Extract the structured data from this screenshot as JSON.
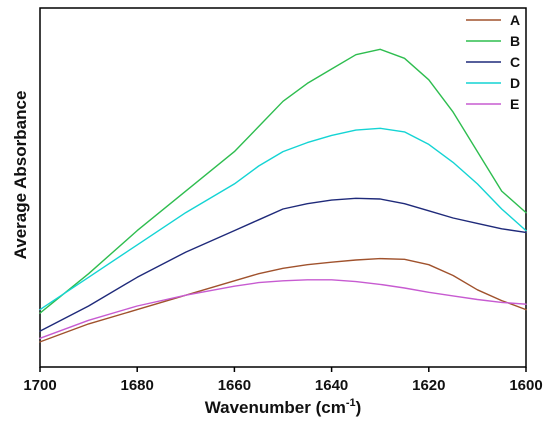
{
  "chart_data": {
    "type": "line",
    "title": "",
    "xlabel": "Wavenumber (cm",
    "xlabel_superscript": "-1",
    "xlabel_suffix": ")",
    "ylabel": "Average Absorbance",
    "xlim": [
      1700,
      1600
    ],
    "ylim": [
      0,
      1
    ],
    "x_axis_reversed": true,
    "y_ticks_visible": false,
    "grid": false,
    "legend_position": "top-right",
    "x_ticks": [
      1700,
      1680,
      1660,
      1640,
      1620,
      1600
    ],
    "x_tick_labels": [
      "1700",
      "1680",
      "1660",
      "1640",
      "1620",
      "1600"
    ],
    "series": [
      {
        "name": "A",
        "color": "#a0522d",
        "x": [
          1700,
          1690,
          1680,
          1670,
          1660,
          1655,
          1650,
          1645,
          1640,
          1635,
          1630,
          1625,
          1620,
          1615,
          1610,
          1605,
          1600
        ],
        "y": [
          0.07,
          0.12,
          0.16,
          0.2,
          0.24,
          0.26,
          0.275,
          0.285,
          0.292,
          0.298,
          0.302,
          0.3,
          0.285,
          0.255,
          0.215,
          0.185,
          0.16
        ]
      },
      {
        "name": "B",
        "color": "#2ebd4f",
        "x": [
          1700,
          1690,
          1680,
          1670,
          1660,
          1655,
          1650,
          1645,
          1640,
          1635,
          1630,
          1625,
          1620,
          1615,
          1610,
          1605,
          1600
        ],
        "y": [
          0.15,
          0.26,
          0.38,
          0.49,
          0.6,
          0.67,
          0.74,
          0.79,
          0.83,
          0.87,
          0.885,
          0.86,
          0.8,
          0.71,
          0.6,
          0.49,
          0.43
        ]
      },
      {
        "name": "C",
        "color": "#1f2a7a",
        "x": [
          1700,
          1690,
          1680,
          1670,
          1660,
          1655,
          1650,
          1645,
          1640,
          1635,
          1630,
          1625,
          1620,
          1615,
          1610,
          1605,
          1600
        ],
        "y": [
          0.1,
          0.17,
          0.25,
          0.32,
          0.38,
          0.41,
          0.44,
          0.455,
          0.465,
          0.47,
          0.468,
          0.455,
          0.435,
          0.415,
          0.4,
          0.385,
          0.375
        ]
      },
      {
        "name": "D",
        "color": "#14d4d4",
        "x": [
          1700,
          1690,
          1680,
          1670,
          1660,
          1655,
          1650,
          1645,
          1640,
          1635,
          1630,
          1625,
          1620,
          1615,
          1610,
          1605,
          1600
        ],
        "y": [
          0.16,
          0.25,
          0.34,
          0.43,
          0.51,
          0.56,
          0.6,
          0.625,
          0.645,
          0.66,
          0.665,
          0.655,
          0.62,
          0.57,
          0.51,
          0.44,
          0.38
        ]
      },
      {
        "name": "E",
        "color": "#c75bd1",
        "x": [
          1700,
          1690,
          1680,
          1670,
          1660,
          1655,
          1650,
          1645,
          1640,
          1635,
          1630,
          1625,
          1620,
          1615,
          1610,
          1605,
          1600
        ],
        "y": [
          0.08,
          0.13,
          0.17,
          0.2,
          0.225,
          0.235,
          0.24,
          0.243,
          0.243,
          0.238,
          0.23,
          0.22,
          0.208,
          0.198,
          0.188,
          0.18,
          0.175
        ]
      }
    ]
  }
}
